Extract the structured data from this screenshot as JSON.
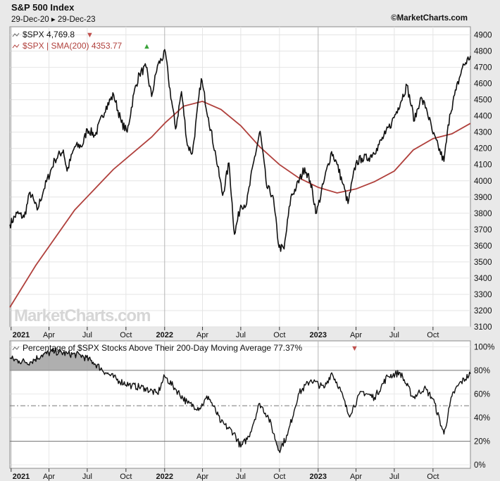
{
  "header": {
    "title": "S&P 500 Index",
    "date_range": "29-Dec-20 ▸ 29-Dec-23",
    "source": "©MarketCharts.com",
    "logo_text": "MarketCharts.com"
  },
  "colors": {
    "price": "#111111",
    "sma": "#b0403c",
    "up_marker": "#3aa33a",
    "down_marker": "#c0504d",
    "plot_bg": "#ffffff",
    "shade": "#9b9b9b"
  },
  "chart_data": [
    {
      "type": "line",
      "title": "S&P 500 Index",
      "x_tick_labels": [
        "2021",
        "Apr",
        "Jul",
        "Oct",
        "2022",
        "Apr",
        "Jul",
        "Oct",
        "2023",
        "Apr",
        "Jul",
        "Oct"
      ],
      "x_tick_dates": [
        "2021-01-01",
        "2021-04-01",
        "2021-07-01",
        "2021-10-01",
        "2022-01-01",
        "2022-04-01",
        "2022-07-01",
        "2022-10-01",
        "2023-01-01",
        "2023-04-01",
        "2023-07-01",
        "2023-10-01"
      ],
      "x_range": [
        "2020-12-29",
        "2023-12-29"
      ],
      "ylim": [
        3100,
        4950
      ],
      "y_ticks": [
        3100,
        3200,
        3300,
        3400,
        3500,
        3600,
        3700,
        3800,
        3900,
        4000,
        4100,
        4200,
        4300,
        4400,
        4500,
        4600,
        4700,
        4800,
        4900
      ],
      "grid": true,
      "legend_position": "top-left",
      "legend": [
        {
          "label": "$SPX 4,769.8",
          "marker": "▼",
          "marker_color": "down_marker",
          "color": "price"
        },
        {
          "label": "$SPX | SMA(200) 4353.77",
          "marker": "▲",
          "marker_color": "up_marker",
          "color": "sma"
        }
      ],
      "series": [
        {
          "name": "$SPX",
          "x": [
            "2020-12-29",
            "2021-01-15",
            "2021-02-01",
            "2021-02-15",
            "2021-03-04",
            "2021-03-20",
            "2021-04-15",
            "2021-05-05",
            "2021-05-14",
            "2021-06-01",
            "2021-06-20",
            "2021-07-01",
            "2021-07-20",
            "2021-08-15",
            "2021-09-02",
            "2021-09-20",
            "2021-10-04",
            "2021-10-20",
            "2021-11-02",
            "2021-11-18",
            "2021-12-01",
            "2021-12-15",
            "2022-01-03",
            "2022-01-10",
            "2022-01-27",
            "2022-02-10",
            "2022-02-24",
            "2022-03-08",
            "2022-03-29",
            "2022-04-15",
            "2022-05-03",
            "2022-05-19",
            "2022-06-03",
            "2022-06-16",
            "2022-07-01",
            "2022-07-15",
            "2022-08-01",
            "2022-08-16",
            "2022-09-01",
            "2022-09-15",
            "2022-09-30",
            "2022-10-12",
            "2022-10-28",
            "2022-11-10",
            "2022-11-30",
            "2022-12-13",
            "2022-12-28",
            "2023-01-15",
            "2023-02-02",
            "2023-02-15",
            "2023-03-01",
            "2023-03-13",
            "2023-04-01",
            "2023-04-15",
            "2023-05-01",
            "2023-05-20",
            "2023-06-10",
            "2023-06-25",
            "2023-07-10",
            "2023-07-31",
            "2023-08-18",
            "2023-09-01",
            "2023-09-15",
            "2023-10-01",
            "2023-10-27",
            "2023-11-10",
            "2023-11-25",
            "2023-12-10",
            "2023-12-29"
          ],
          "y": [
            3730,
            3800,
            3775,
            3930,
            3820,
            3950,
            4130,
            4190,
            4060,
            4210,
            4220,
            4320,
            4280,
            4460,
            4530,
            4360,
            4300,
            4540,
            4660,
            4700,
            4520,
            4710,
            4790,
            4630,
            4320,
            4550,
            4220,
            4170,
            4630,
            4390,
            4150,
            3910,
            4110,
            3670,
            3850,
            3860,
            4120,
            4305,
            3960,
            3910,
            3590,
            3580,
            3900,
            3960,
            4080,
            4000,
            3800,
            4000,
            4180,
            4100,
            3980,
            3860,
            4110,
            4140,
            4140,
            4200,
            4290,
            4360,
            4450,
            4590,
            4370,
            4510,
            4450,
            4290,
            4120,
            4410,
            4560,
            4700,
            4770
          ]
        },
        {
          "name": "$SPX | SMA(200)",
          "x": [
            "2020-12-29",
            "2021-03-01",
            "2021-06-01",
            "2021-09-01",
            "2021-12-01",
            "2022-01-03",
            "2022-02-15",
            "2022-04-01",
            "2022-05-15",
            "2022-07-01",
            "2022-08-15",
            "2022-10-01",
            "2022-11-15",
            "2023-01-01",
            "2023-02-15",
            "2023-04-01",
            "2023-05-15",
            "2023-07-01",
            "2023-08-15",
            "2023-10-01",
            "2023-11-15",
            "2023-12-29"
          ],
          "y": [
            3220,
            3480,
            3820,
            4070,
            4270,
            4360,
            4460,
            4490,
            4440,
            4340,
            4210,
            4100,
            4020,
            3960,
            3925,
            3950,
            3995,
            4060,
            4190,
            4260,
            4290,
            4354
          ]
        }
      ]
    },
    {
      "type": "area",
      "title": "Percentage of $SPX Stocks Above Their 200-Day Moving Average 77.37%",
      "legend_marker": "▼",
      "legend_position": "top-left",
      "x_tick_labels": [
        "2021",
        "Apr",
        "Jul",
        "Oct",
        "2022",
        "Apr",
        "Jul",
        "Oct",
        "2023",
        "Apr",
        "Jul",
        "Oct"
      ],
      "ylim": [
        -3,
        105
      ],
      "y_ticks": [
        0,
        20,
        40,
        60,
        80,
        100
      ],
      "y_tick_labels": [
        "0%",
        "20%",
        "40%",
        "60%",
        "80%",
        "100%"
      ],
      "reference_lines": [
        80,
        50,
        20
      ],
      "shade_above": 80,
      "shade_below": 20,
      "grid": true,
      "series": [
        {
          "name": "Percentage of $SPX Stocks Above Their 200-Day Moving Average",
          "x": [
            "2020-12-29",
            "2021-01-20",
            "2021-02-15",
            "2021-03-15",
            "2021-04-15",
            "2021-05-15",
            "2021-06-15",
            "2021-07-15",
            "2021-08-15",
            "2021-09-15",
            "2021-10-15",
            "2021-11-15",
            "2021-12-15",
            "2022-01-01",
            "2022-01-25",
            "2022-02-25",
            "2022-03-25",
            "2022-04-15",
            "2022-05-15",
            "2022-06-15",
            "2022-07-01",
            "2022-07-20",
            "2022-08-15",
            "2022-09-05",
            "2022-09-30",
            "2022-10-20",
            "2022-11-15",
            "2022-12-15",
            "2023-01-15",
            "2023-02-02",
            "2023-02-20",
            "2023-03-15",
            "2023-04-15",
            "2023-05-15",
            "2023-06-15",
            "2023-07-15",
            "2023-08-15",
            "2023-09-10",
            "2023-10-01",
            "2023-10-27",
            "2023-11-15",
            "2023-12-01",
            "2023-12-29"
          ],
          "y": [
            90,
            88,
            87,
            93,
            96,
            94,
            93,
            87,
            78,
            71,
            67,
            65,
            60,
            75,
            65,
            52,
            48,
            58,
            36,
            27,
            15,
            24,
            52,
            40,
            12,
            25,
            60,
            72,
            65,
            78,
            66,
            42,
            62,
            57,
            75,
            78,
            57,
            65,
            56,
            26,
            58,
            68,
            77
          ]
        }
      ]
    }
  ]
}
